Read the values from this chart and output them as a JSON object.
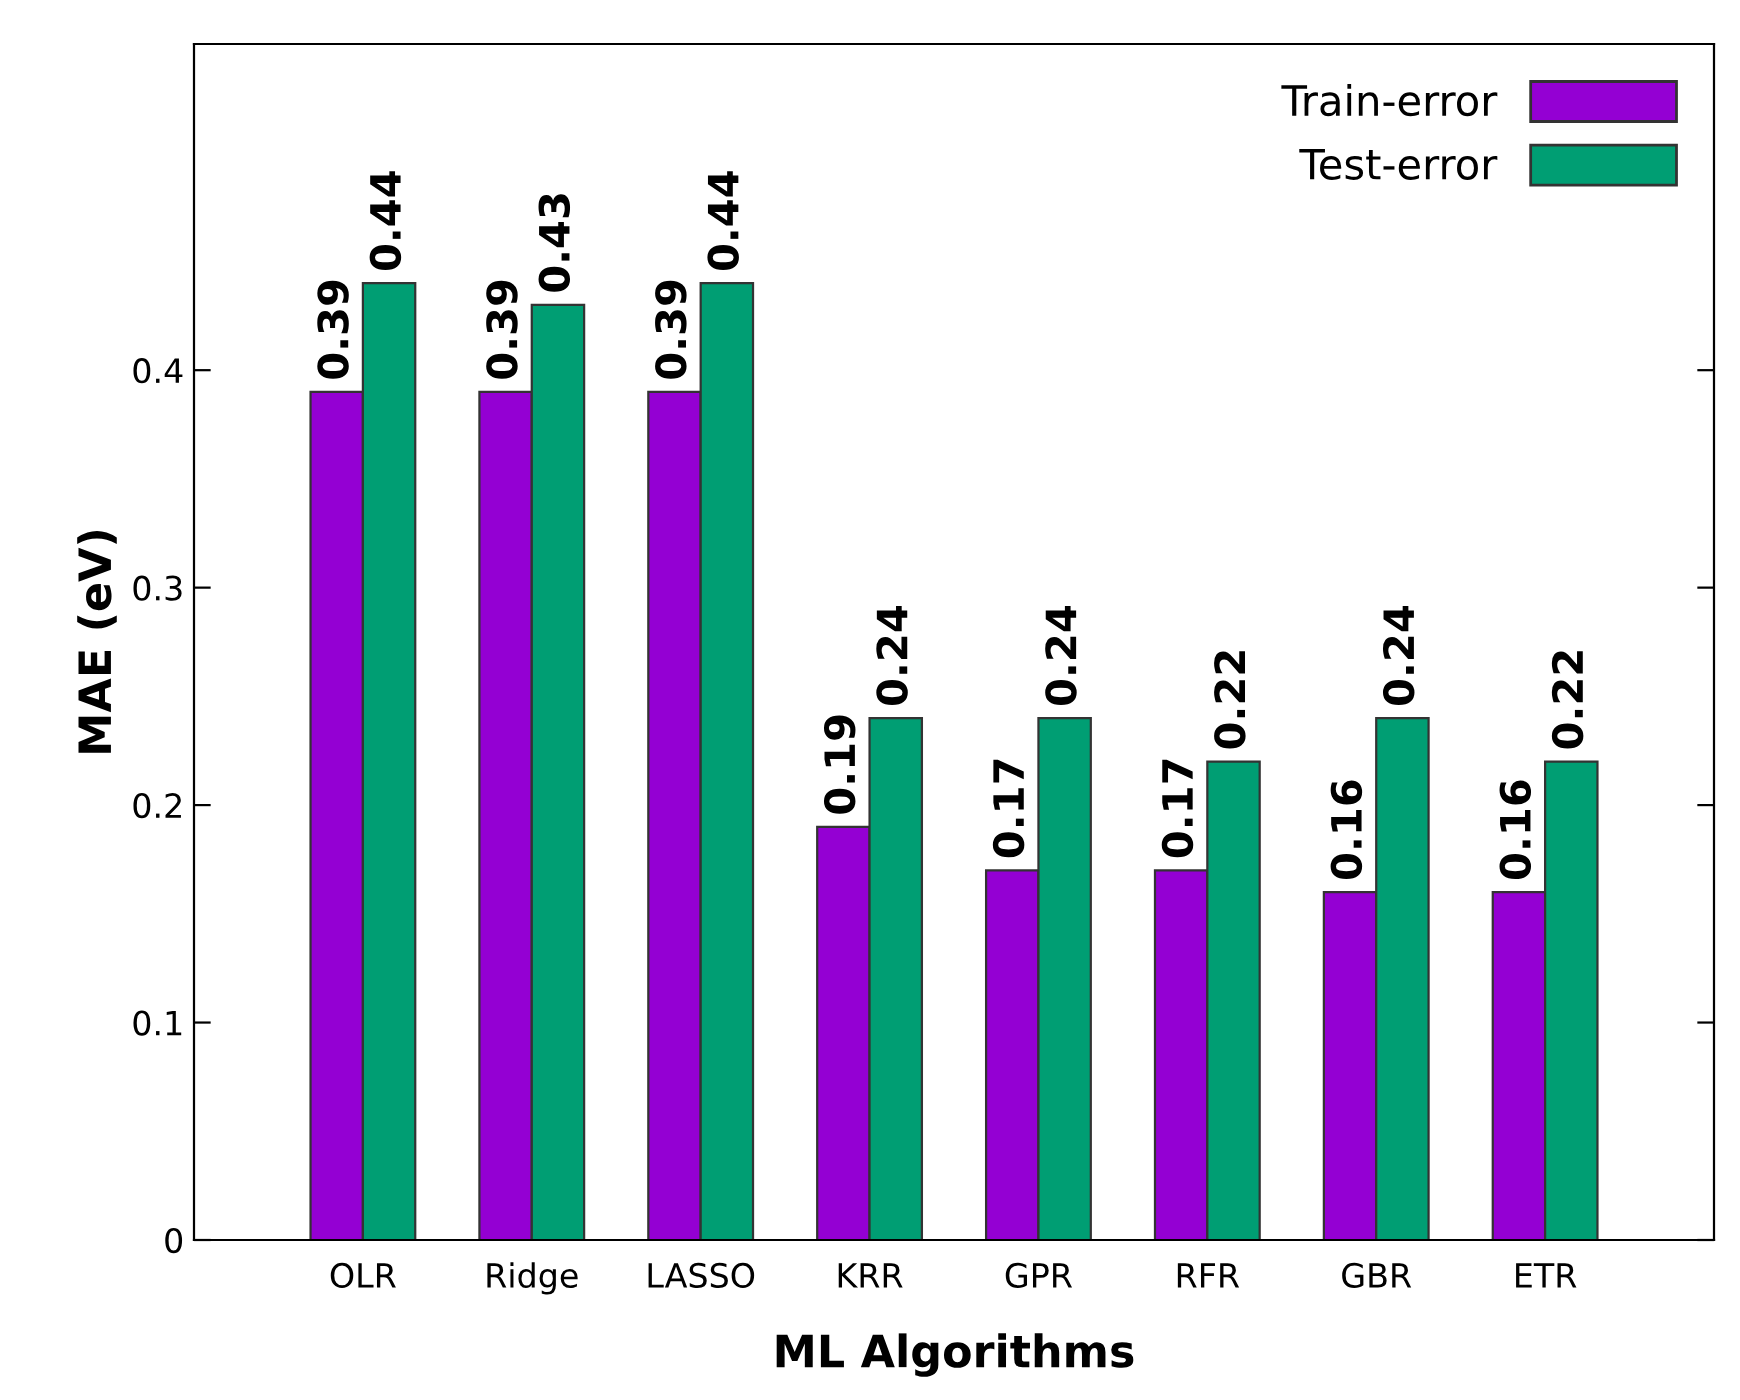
{
  "chart_data": {
    "type": "bar",
    "xlabel": "ML Algorithms",
    "ylabel": "MAE (eV)",
    "categories": [
      "OLR",
      "Ridge",
      "LASSO",
      "KRR",
      "GPR",
      "RFR",
      "GBR",
      "ETR"
    ],
    "series": [
      {
        "name": "Train-error",
        "color": "#9400d3",
        "values": [
          0.39,
          0.39,
          0.39,
          0.19,
          0.17,
          0.17,
          0.16,
          0.16
        ]
      },
      {
        "name": "Test-error",
        "color": "#009e73",
        "values": [
          0.44,
          0.43,
          0.44,
          0.24,
          0.24,
          0.22,
          0.24,
          0.22
        ]
      }
    ],
    "ylim": [
      0,
      0.55
    ],
    "yticks": [
      0,
      0.1,
      0.2,
      0.3,
      0.4
    ],
    "grid": false,
    "legend": "top right",
    "data_labels": true
  }
}
